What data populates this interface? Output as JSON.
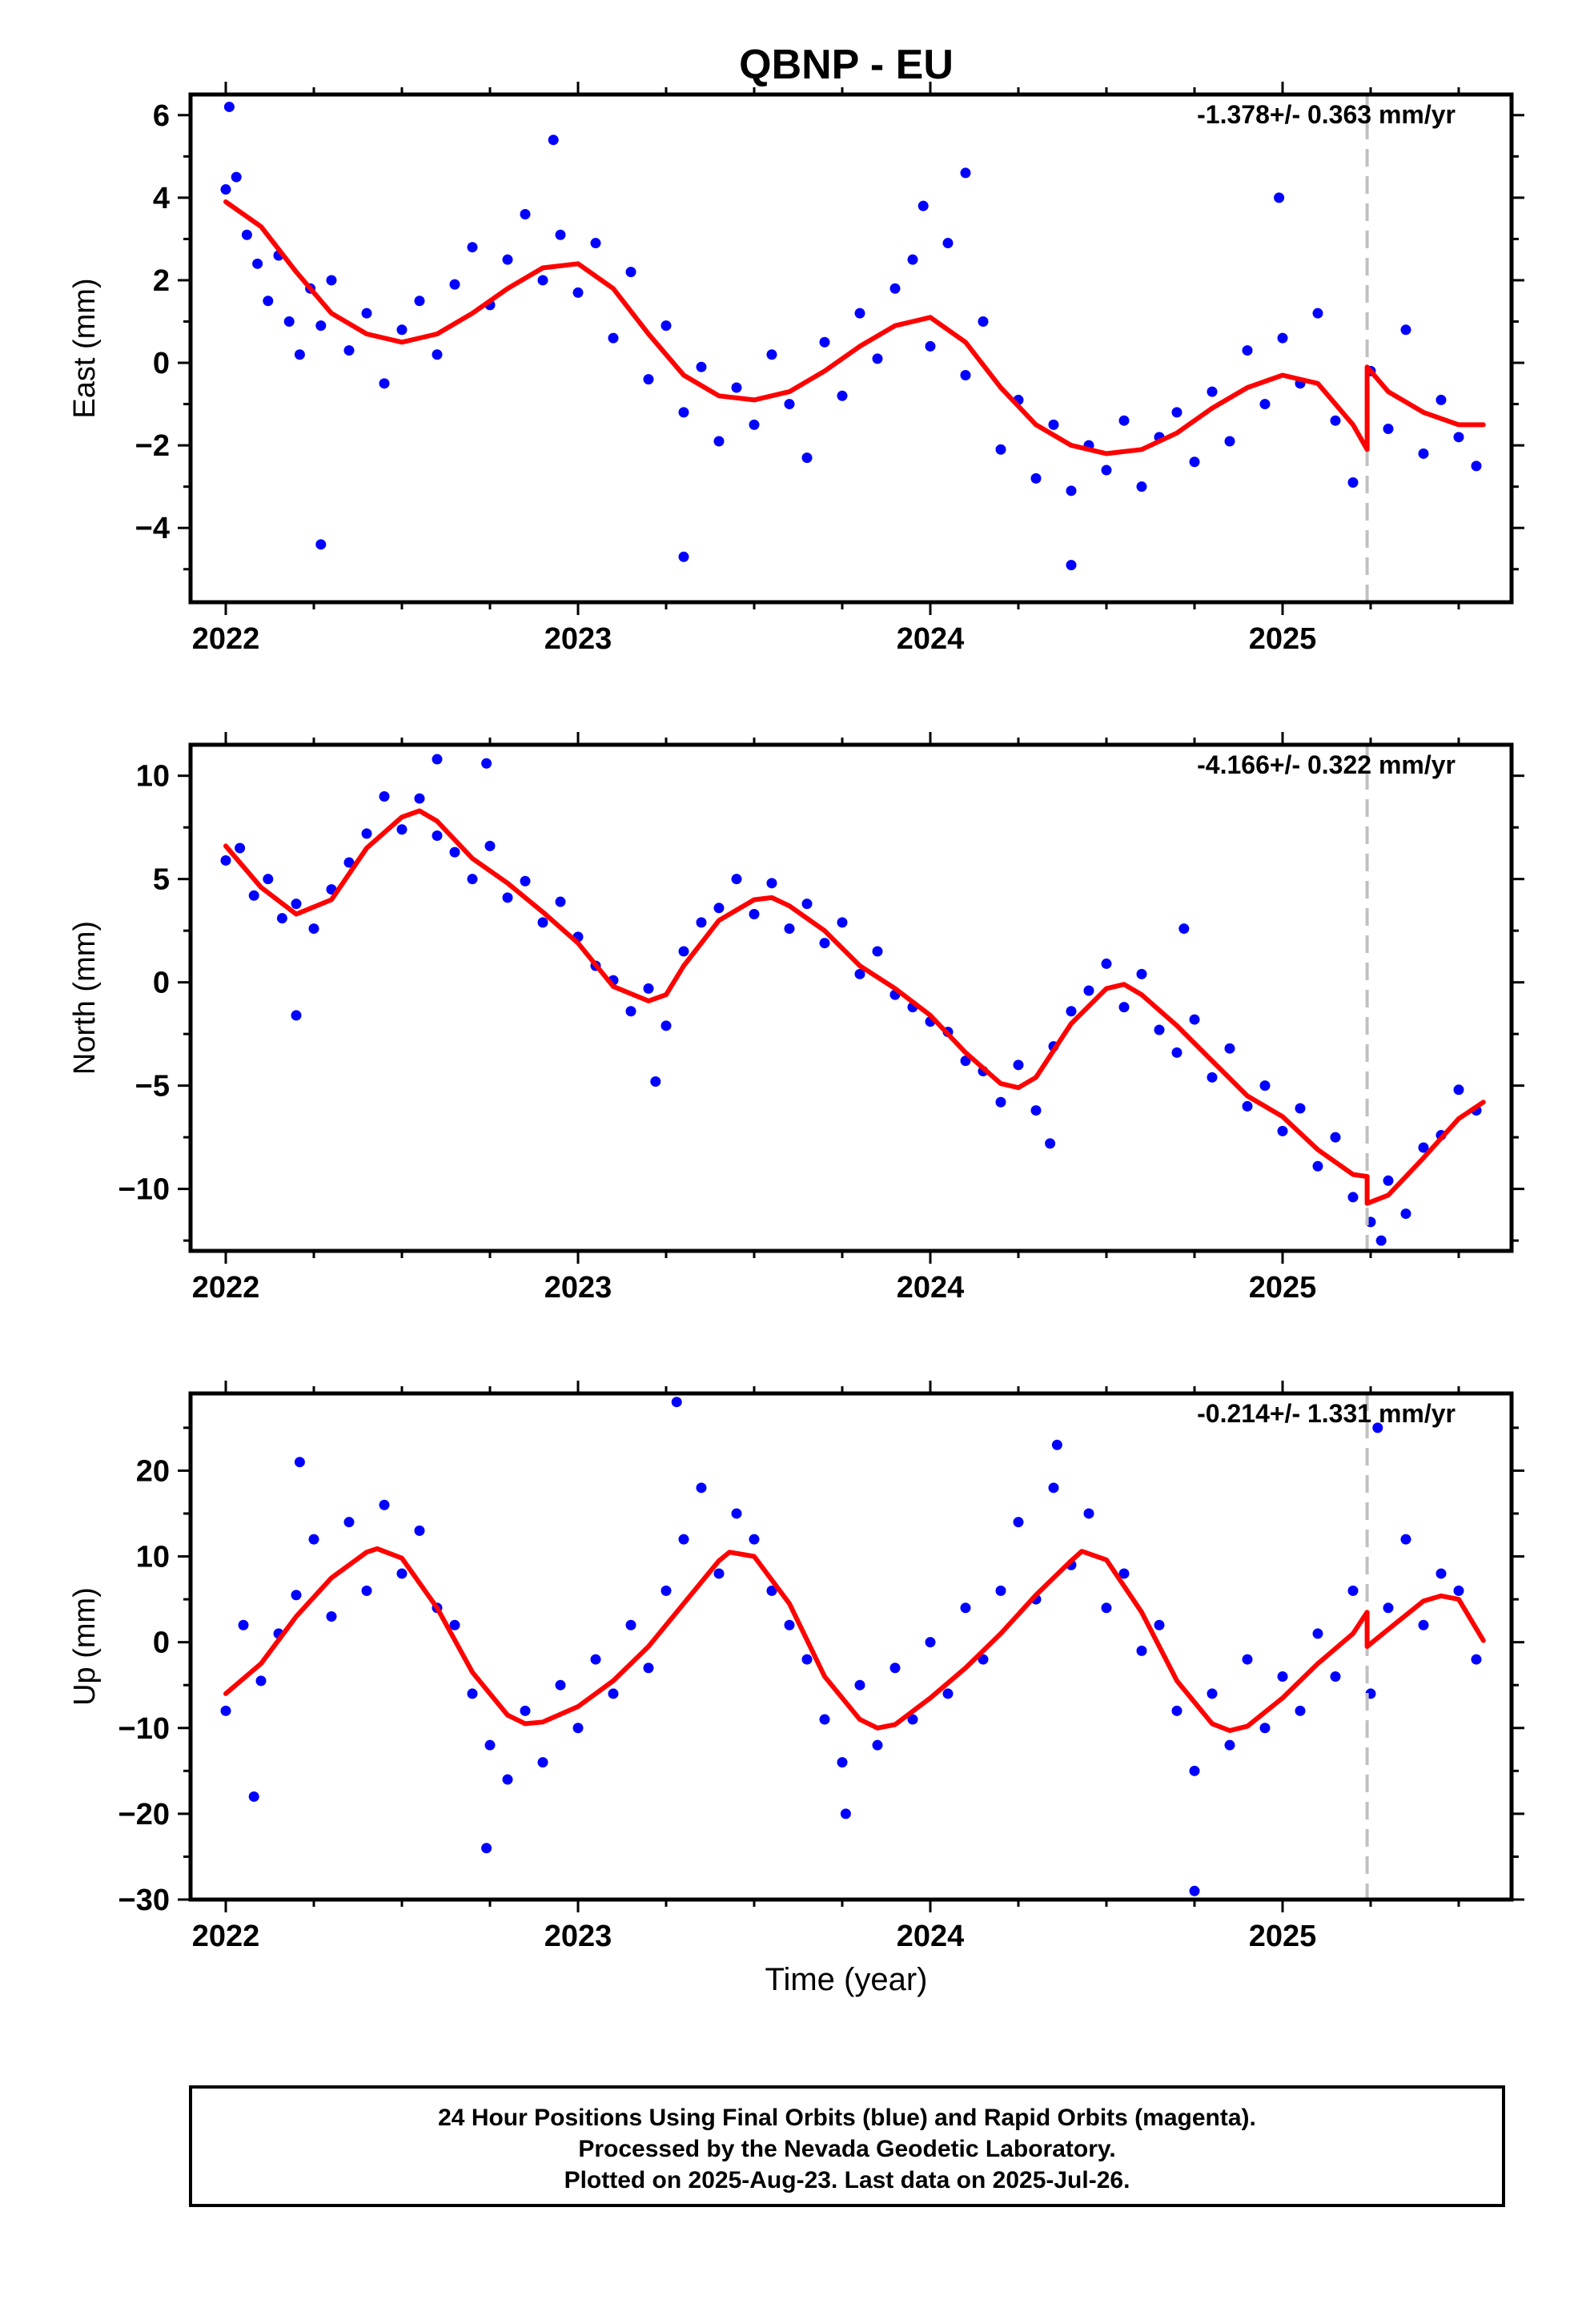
{
  "title": "QBNP - EU",
  "xlabel": "Time (year)",
  "colors": {
    "points": "#0000ff",
    "fit": "#ff0000",
    "event_line": "#c0c0c0",
    "frame": "#000000"
  },
  "footer": {
    "line1": "24 Hour Positions Using Final Orbits (blue) and Rapid Orbits (magenta).",
    "line2": "Processed by the Nevada Geodetic Laboratory.",
    "line3": "Plotted on 2025-Aug-23. Last data on 2025-Jul-26."
  },
  "chart_data": [
    {
      "type": "scatter",
      "component": "east",
      "ylabel": "East (mm)",
      "rate_label": "-1.378+/- 0.363 mm/yr",
      "rate_mm_per_yr": -1.378,
      "rate_sigma": 0.363,
      "xlim": [
        2021.9,
        2025.65
      ],
      "ylim": [
        -5.8,
        6.5
      ],
      "xticks": [
        "2022",
        "2023",
        "2024",
        "2025"
      ],
      "yticks": [
        -4,
        -2,
        0,
        2,
        4,
        6
      ],
      "event_epoch": 2025.24,
      "series": [
        {
          "kind": "fit",
          "x": [
            2022.0,
            2022.1,
            2022.2,
            2022.3,
            2022.4,
            2022.5,
            2022.6,
            2022.7,
            2022.8,
            2022.9,
            2023.0,
            2023.1,
            2023.2,
            2023.3,
            2023.4,
            2023.5,
            2023.6,
            2023.7,
            2023.8,
            2023.9,
            2024.0,
            2024.1,
            2024.2,
            2024.3,
            2024.4,
            2024.5,
            2024.6,
            2024.7,
            2024.8,
            2024.9,
            2025.0,
            2025.1,
            2025.2,
            2025.24,
            2025.24,
            2025.3,
            2025.4,
            2025.5,
            2025.57
          ],
          "y": [
            3.9,
            3.3,
            2.2,
            1.2,
            0.7,
            0.5,
            0.7,
            1.2,
            1.8,
            2.3,
            2.4,
            1.8,
            0.7,
            -0.3,
            -0.8,
            -0.9,
            -0.7,
            -0.2,
            0.4,
            0.9,
            1.1,
            0.5,
            -0.6,
            -1.5,
            -2.0,
            -2.2,
            -2.1,
            -1.7,
            -1.1,
            -0.6,
            -0.3,
            -0.5,
            -1.5,
            -2.1,
            -0.1,
            -0.7,
            -1.2,
            -1.5,
            -1.5
          ]
        },
        {
          "kind": "points",
          "x": [
            2022.0,
            2022.03,
            2022.06,
            2022.09,
            2022.12,
            2022.15,
            2022.18,
            2022.21,
            2022.24,
            2022.27,
            2022.3,
            2022.35,
            2022.4,
            2022.45,
            2022.5,
            2022.55,
            2022.6,
            2022.65,
            2022.7,
            2022.75,
            2022.8,
            2022.85,
            2022.9,
            2022.95,
            2023.0,
            2023.05,
            2023.1,
            2023.15,
            2023.2,
            2023.25,
            2023.3,
            2023.35,
            2023.4,
            2023.45,
            2023.5,
            2023.55,
            2023.6,
            2023.65,
            2023.7,
            2023.75,
            2023.8,
            2023.85,
            2023.9,
            2023.95,
            2024.0,
            2024.05,
            2024.1,
            2024.15,
            2024.2,
            2024.25,
            2024.3,
            2024.35,
            2024.4,
            2024.45,
            2024.5,
            2024.55,
            2024.6,
            2024.65,
            2024.7,
            2024.75,
            2024.8,
            2024.85,
            2024.9,
            2024.95,
            2025.0,
            2025.05,
            2025.1,
            2025.15,
            2025.2,
            2025.25,
            2025.3,
            2025.35,
            2025.4,
            2025.45,
            2025.5,
            2025.55,
            2022.01,
            2022.27,
            2022.93,
            2023.3,
            2023.98,
            2024.1,
            2024.4,
            2024.99
          ],
          "y": [
            4.2,
            4.5,
            3.1,
            2.4,
            1.5,
            2.6,
            1.0,
            0.2,
            1.8,
            0.9,
            2.0,
            0.3,
            1.2,
            -0.5,
            0.8,
            1.5,
            0.2,
            1.9,
            2.8,
            1.4,
            2.5,
            3.6,
            2.0,
            3.1,
            1.7,
            2.9,
            0.6,
            2.2,
            -0.4,
            0.9,
            -1.2,
            -0.1,
            -1.9,
            -0.6,
            -1.5,
            0.2,
            -1.0,
            -2.3,
            0.5,
            -0.8,
            1.2,
            0.1,
            1.8,
            2.5,
            0.4,
            2.9,
            -0.3,
            1.0,
            -2.1,
            -0.9,
            -2.8,
            -1.5,
            -3.1,
            -2.0,
            -2.6,
            -1.4,
            -3.0,
            -1.8,
            -1.2,
            -2.4,
            -0.7,
            -1.9,
            0.3,
            -1.0,
            0.6,
            -0.5,
            1.2,
            -1.4,
            -2.9,
            -0.2,
            -1.6,
            0.8,
            -2.2,
            -0.9,
            -1.8,
            -2.5,
            6.2,
            -4.4,
            5.4,
            -4.7,
            3.8,
            4.6,
            -4.9,
            4.0
          ]
        }
      ]
    },
    {
      "type": "scatter",
      "component": "north",
      "ylabel": "North (mm)",
      "rate_label": "-4.166+/- 0.322 mm/yr",
      "rate_mm_per_yr": -4.166,
      "rate_sigma": 0.322,
      "xlim": [
        2021.9,
        2025.65
      ],
      "ylim": [
        -13,
        11.5
      ],
      "xticks": [
        "2022",
        "2023",
        "2024",
        "2025"
      ],
      "yticks": [
        -10,
        -5,
        0,
        5,
        10
      ],
      "event_epoch": 2025.24,
      "series": [
        {
          "kind": "fit",
          "x": [
            2022.0,
            2022.1,
            2022.2,
            2022.3,
            2022.4,
            2022.5,
            2022.55,
            2022.6,
            2022.7,
            2022.8,
            2022.9,
            2023.0,
            2023.1,
            2023.2,
            2023.25,
            2023.3,
            2023.4,
            2023.5,
            2023.55,
            2023.6,
            2023.7,
            2023.8,
            2023.9,
            2024.0,
            2024.1,
            2024.2,
            2024.25,
            2024.3,
            2024.4,
            2024.5,
            2024.55,
            2024.6,
            2024.7,
            2024.8,
            2024.9,
            2025.0,
            2025.1,
            2025.2,
            2025.24,
            2025.24,
            2025.3,
            2025.4,
            2025.5,
            2025.57
          ],
          "y": [
            6.6,
            4.6,
            3.3,
            4.0,
            6.5,
            8.0,
            8.3,
            7.8,
            6.0,
            4.8,
            3.4,
            1.9,
            -0.2,
            -0.9,
            -0.6,
            0.8,
            3.0,
            4.0,
            4.1,
            3.7,
            2.5,
            0.8,
            -0.3,
            -1.6,
            -3.4,
            -4.9,
            -5.1,
            -4.6,
            -2.0,
            -0.3,
            -0.1,
            -0.6,
            -2.1,
            -3.8,
            -5.5,
            -6.5,
            -8.1,
            -9.3,
            -9.4,
            -10.7,
            -10.3,
            -8.5,
            -6.6,
            -5.8
          ]
        },
        {
          "kind": "points",
          "x": [
            2022.0,
            2022.04,
            2022.08,
            2022.12,
            2022.16,
            2022.2,
            2022.25,
            2022.3,
            2022.35,
            2022.4,
            2022.45,
            2022.5,
            2022.55,
            2022.6,
            2022.65,
            2022.7,
            2022.75,
            2022.8,
            2022.85,
            2022.9,
            2022.95,
            2023.0,
            2023.05,
            2023.1,
            2023.15,
            2023.2,
            2023.25,
            2023.3,
            2023.35,
            2023.4,
            2023.45,
            2023.5,
            2023.55,
            2023.6,
            2023.65,
            2023.7,
            2023.75,
            2023.8,
            2023.85,
            2023.9,
            2023.95,
            2024.0,
            2024.05,
            2024.1,
            2024.15,
            2024.2,
            2024.25,
            2024.3,
            2024.35,
            2024.4,
            2024.45,
            2024.5,
            2024.55,
            2024.6,
            2024.65,
            2024.7,
            2024.75,
            2024.8,
            2024.85,
            2024.9,
            2024.95,
            2025.0,
            2025.05,
            2025.1,
            2025.15,
            2025.2,
            2025.25,
            2025.3,
            2025.35,
            2025.4,
            2025.45,
            2025.5,
            2025.55,
            2022.2,
            2022.6,
            2022.74,
            2023.22,
            2024.34,
            2024.72,
            2025.28
          ],
          "y": [
            5.9,
            6.5,
            4.2,
            5.0,
            3.1,
            3.8,
            2.6,
            4.5,
            5.8,
            7.2,
            9.0,
            7.4,
            8.9,
            7.1,
            6.3,
            5.0,
            6.6,
            4.1,
            4.9,
            2.9,
            3.9,
            2.2,
            0.8,
            0.1,
            -1.4,
            -0.3,
            -2.1,
            1.5,
            2.9,
            3.6,
            5.0,
            3.3,
            4.8,
            2.6,
            3.8,
            1.9,
            2.9,
            0.4,
            1.5,
            -0.6,
            -1.2,
            -1.9,
            -2.4,
            -3.8,
            -4.3,
            -5.8,
            -4.0,
            -6.2,
            -3.1,
            -1.4,
            -0.4,
            0.9,
            -1.2,
            0.4,
            -2.3,
            -3.4,
            -1.8,
            -4.6,
            -3.2,
            -6.0,
            -5.0,
            -7.2,
            -6.1,
            -8.9,
            -7.5,
            -10.4,
            -11.6,
            -9.6,
            -11.2,
            -8.0,
            -7.4,
            -5.2,
            -6.2,
            -1.6,
            10.8,
            10.6,
            -4.8,
            -7.8,
            2.6,
            -12.5
          ]
        }
      ]
    },
    {
      "type": "scatter",
      "component": "up",
      "ylabel": "Up (mm)",
      "rate_label": "-0.214+/- 1.331 mm/yr",
      "rate_mm_per_yr": -0.214,
      "rate_sigma": 1.331,
      "xlim": [
        2021.9,
        2025.65
      ],
      "ylim": [
        -30,
        29
      ],
      "xticks": [
        "2022",
        "2023",
        "2024",
        "2025"
      ],
      "yticks": [
        -30,
        -20,
        -10,
        0,
        10,
        20
      ],
      "event_epoch": 2025.24,
      "series": [
        {
          "kind": "fit",
          "x": [
            2022.0,
            2022.1,
            2022.2,
            2022.3,
            2022.4,
            2022.43,
            2022.5,
            2022.6,
            2022.7,
            2022.8,
            2022.85,
            2022.9,
            2023.0,
            2023.1,
            2023.2,
            2023.3,
            2023.4,
            2023.43,
            2023.5,
            2023.6,
            2023.7,
            2023.8,
            2023.85,
            2023.9,
            2024.0,
            2024.1,
            2024.2,
            2024.3,
            2024.4,
            2024.43,
            2024.5,
            2024.6,
            2024.7,
            2024.8,
            2024.85,
            2024.9,
            2025.0,
            2025.1,
            2025.2,
            2025.24,
            2025.24,
            2025.3,
            2025.4,
            2025.45,
            2025.5,
            2025.57
          ],
          "y": [
            -6.0,
            -2.5,
            3.0,
            7.5,
            10.5,
            10.9,
            9.8,
            4.0,
            -3.5,
            -8.5,
            -9.5,
            -9.3,
            -7.5,
            -4.5,
            -0.5,
            4.5,
            9.5,
            10.5,
            10.0,
            4.5,
            -4.0,
            -9.0,
            -10.0,
            -9.6,
            -6.5,
            -3.0,
            1.0,
            5.5,
            9.5,
            10.6,
            9.6,
            3.5,
            -4.5,
            -9.5,
            -10.3,
            -9.8,
            -6.5,
            -2.5,
            1.0,
            3.5,
            -0.5,
            1.5,
            4.8,
            5.4,
            5.0,
            0.2
          ]
        },
        {
          "kind": "points",
          "x": [
            2022.0,
            2022.05,
            2022.1,
            2022.15,
            2022.2,
            2022.25,
            2022.3,
            2022.35,
            2022.4,
            2022.45,
            2022.5,
            2022.55,
            2022.6,
            2022.65,
            2022.7,
            2022.75,
            2022.8,
            2022.85,
            2022.9,
            2022.95,
            2023.0,
            2023.05,
            2023.1,
            2023.15,
            2023.2,
            2023.25,
            2023.3,
            2023.35,
            2023.4,
            2023.45,
            2023.5,
            2023.55,
            2023.6,
            2023.65,
            2023.7,
            2023.75,
            2023.8,
            2023.85,
            2023.9,
            2023.95,
            2024.0,
            2024.05,
            2024.1,
            2024.15,
            2024.2,
            2024.25,
            2024.3,
            2024.35,
            2024.4,
            2024.45,
            2024.5,
            2024.55,
            2024.6,
            2024.65,
            2024.7,
            2024.75,
            2024.8,
            2024.85,
            2024.9,
            2024.95,
            2025.0,
            2025.05,
            2025.1,
            2025.15,
            2025.2,
            2025.25,
            2025.3,
            2025.35,
            2025.4,
            2025.45,
            2025.5,
            2025.55,
            2022.08,
            2022.21,
            2022.74,
            2023.28,
            2023.76,
            2024.36,
            2024.75,
            2025.27
          ],
          "y": [
            -8.0,
            2.0,
            -4.5,
            1.0,
            5.5,
            12.0,
            3.0,
            14.0,
            6.0,
            16.0,
            8.0,
            13.0,
            4.0,
            2.0,
            -6.0,
            -12.0,
            -16.0,
            -8.0,
            -14.0,
            -5.0,
            -10.0,
            -2.0,
            -6.0,
            2.0,
            -3.0,
            6.0,
            12.0,
            18.0,
            8.0,
            15.0,
            12.0,
            6.0,
            2.0,
            -2.0,
            -9.0,
            -14.0,
            -5.0,
            -12.0,
            -3.0,
            -9.0,
            0.0,
            -6.0,
            4.0,
            -2.0,
            6.0,
            14.0,
            5.0,
            18.0,
            9.0,
            15.0,
            4.0,
            8.0,
            -1.0,
            2.0,
            -8.0,
            -15.0,
            -6.0,
            -12.0,
            -2.0,
            -10.0,
            -4.0,
            -8.0,
            1.0,
            -4.0,
            6.0,
            -6.0,
            4.0,
            12.0,
            2.0,
            8.0,
            6.0,
            -2.0,
            -18.0,
            21.0,
            -24.0,
            28.0,
            -20.0,
            23.0,
            -29.0,
            25.0
          ]
        }
      ]
    }
  ]
}
